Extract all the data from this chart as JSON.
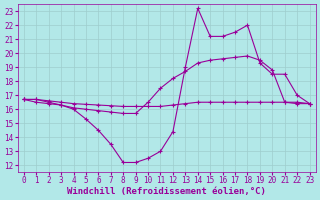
{
  "xlabel": "Windchill (Refroidissement éolien,°C)",
  "bg_color": "#b2e8e8",
  "grid_color": "#9ecece",
  "line_color": "#990099",
  "xlim": [
    -0.5,
    23.5
  ],
  "ylim": [
    11.5,
    23.5
  ],
  "xticks": [
    0,
    1,
    2,
    3,
    4,
    5,
    6,
    7,
    8,
    9,
    10,
    11,
    12,
    13,
    14,
    15,
    16,
    17,
    18,
    19,
    20,
    21,
    22,
    23
  ],
  "yticks": [
    12,
    13,
    14,
    15,
    16,
    17,
    18,
    19,
    20,
    21,
    22,
    23
  ],
  "line1_x": [
    0,
    1,
    2,
    3,
    4,
    5,
    6,
    7,
    8,
    9,
    10,
    11,
    12,
    13,
    14,
    15,
    16,
    17,
    18,
    19,
    20,
    21,
    22,
    23
  ],
  "line1_y": [
    16.7,
    16.7,
    16.6,
    16.5,
    16.4,
    16.35,
    16.3,
    16.25,
    16.2,
    16.2,
    16.2,
    16.2,
    16.3,
    16.4,
    16.5,
    16.5,
    16.5,
    16.5,
    16.5,
    16.5,
    16.5,
    16.5,
    16.5,
    16.4
  ],
  "line2_x": [
    0,
    1,
    2,
    3,
    4,
    5,
    6,
    7,
    8,
    9,
    10,
    11,
    12,
    13,
    14,
    15,
    16,
    17,
    18,
    19,
    20,
    21,
    22,
    23
  ],
  "line2_y": [
    16.7,
    16.7,
    16.5,
    16.3,
    16.0,
    15.3,
    14.5,
    13.5,
    12.2,
    12.2,
    12.5,
    13.0,
    14.4,
    19.0,
    23.2,
    21.2,
    21.2,
    21.5,
    22.0,
    19.3,
    18.5,
    18.5,
    17.0,
    16.4
  ],
  "line3_x": [
    0,
    1,
    2,
    3,
    4,
    5,
    6,
    7,
    8,
    9,
    10,
    11,
    12,
    13,
    14,
    15,
    16,
    17,
    18,
    19,
    20,
    21,
    22,
    23
  ],
  "line3_y": [
    16.7,
    16.5,
    16.4,
    16.3,
    16.1,
    16.0,
    15.9,
    15.8,
    15.7,
    15.7,
    16.5,
    17.5,
    18.2,
    18.7,
    19.3,
    19.5,
    19.6,
    19.7,
    19.8,
    19.5,
    18.8,
    16.5,
    16.4,
    16.4
  ],
  "marker": "+",
  "markersize": 3,
  "markeredgewidth": 0.8,
  "linewidth": 0.8,
  "tick_fontsize": 5.5,
  "xlabel_fontsize": 6.5,
  "dpi": 100
}
